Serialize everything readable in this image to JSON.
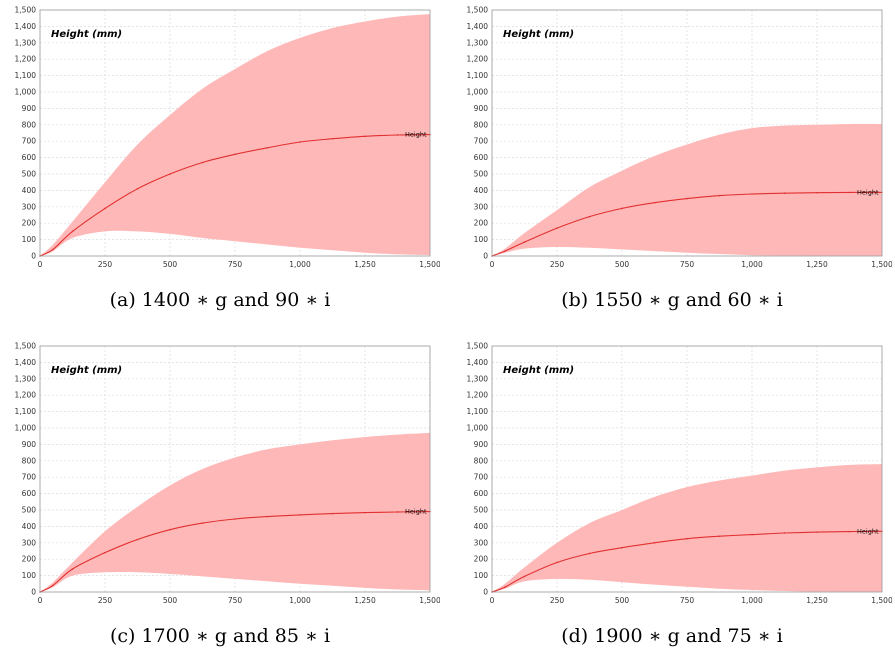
{
  "chart_data": [
    {
      "type": "area",
      "title": "Height (mm)",
      "caption": "(a) 1400 ∗ g and 90 ∗ i",
      "xlim": [
        0,
        1500
      ],
      "ylim": [
        0,
        1500
      ],
      "x_ticks": [
        "0",
        "250",
        "500",
        "750",
        "1,000",
        "1,250",
        "1,500"
      ],
      "y_ticks": [
        "0",
        "100",
        "200",
        "300",
        "400",
        "500",
        "600",
        "700",
        "800",
        "900",
        "1,000",
        "1,100",
        "1,200",
        "1,300",
        "1,400",
        "1,500"
      ],
      "grid": true,
      "line_label": "Height",
      "x": [
        0,
        50,
        125,
        250,
        375,
        500,
        625,
        750,
        875,
        1000,
        1125,
        1250,
        1375,
        1500
      ],
      "mean": [
        0,
        40,
        150,
        290,
        410,
        500,
        570,
        620,
        660,
        695,
        715,
        730,
        738,
        740
      ],
      "upper": [
        0,
        70,
        210,
        450,
        680,
        860,
        1020,
        1140,
        1250,
        1330,
        1390,
        1430,
        1460,
        1475
      ],
      "lower": [
        0,
        30,
        110,
        150,
        150,
        135,
        110,
        90,
        70,
        50,
        35,
        20,
        10,
        5
      ]
    },
    {
      "type": "area",
      "title": "Height (mm)",
      "caption": "(b) 1550 ∗ g and 60 ∗ i",
      "xlim": [
        0,
        1500
      ],
      "ylim": [
        0,
        1500
      ],
      "x_ticks": [
        "0",
        "250",
        "500",
        "750",
        "1,000",
        "1,250",
        "1,500"
      ],
      "y_ticks": [
        "0",
        "100",
        "200",
        "300",
        "400",
        "500",
        "600",
        "700",
        "800",
        "900",
        "1,000",
        "1,100",
        "1,200",
        "1,300",
        "1,400",
        "1,500"
      ],
      "grid": true,
      "line_label": "Height",
      "x": [
        0,
        50,
        125,
        250,
        375,
        500,
        625,
        750,
        875,
        1000,
        1125,
        1250,
        1375,
        1500
      ],
      "mean": [
        0,
        30,
        85,
        170,
        240,
        290,
        325,
        350,
        368,
        378,
        383,
        386,
        388,
        388
      ],
      "upper": [
        0,
        45,
        140,
        280,
        420,
        520,
        610,
        680,
        740,
        780,
        795,
        800,
        805,
        805
      ],
      "lower": [
        0,
        20,
        45,
        55,
        50,
        40,
        30,
        20,
        12,
        5,
        2,
        0,
        0,
        0
      ]
    },
    {
      "type": "area",
      "title": "Height (mm)",
      "caption": "(c) 1700 ∗ g and 85 ∗ i",
      "xlim": [
        0,
        1500
      ],
      "ylim": [
        0,
        1500
      ],
      "x_ticks": [
        "0",
        "250",
        "500",
        "750",
        "1,000",
        "1,250",
        "1,500"
      ],
      "y_ticks": [
        "0",
        "100",
        "200",
        "300",
        "400",
        "500",
        "600",
        "700",
        "800",
        "900",
        "1,000",
        "1,100",
        "1,200",
        "1,300",
        "1,400",
        "1,500"
      ],
      "grid": true,
      "line_label": "Height",
      "x": [
        0,
        50,
        125,
        250,
        375,
        500,
        625,
        750,
        875,
        1000,
        1125,
        1250,
        1375,
        1500
      ],
      "mean": [
        0,
        40,
        140,
        240,
        320,
        380,
        420,
        445,
        460,
        470,
        478,
        484,
        488,
        490
      ],
      "upper": [
        0,
        60,
        180,
        370,
        520,
        650,
        750,
        820,
        870,
        900,
        925,
        945,
        960,
        970
      ],
      "lower": [
        0,
        30,
        100,
        120,
        120,
        110,
        95,
        80,
        65,
        50,
        38,
        25,
        15,
        10
      ]
    },
    {
      "type": "area",
      "title": "Height (mm)",
      "caption": "(d) 1900 ∗ g and 75 ∗ i",
      "xlim": [
        0,
        1500
      ],
      "ylim": [
        0,
        1500
      ],
      "x_ticks": [
        "0",
        "250",
        "500",
        "750",
        "1,000",
        "1,250",
        "1,500"
      ],
      "y_ticks": [
        "0",
        "100",
        "200",
        "300",
        "400",
        "500",
        "600",
        "700",
        "800",
        "900",
        "1,000",
        "1,100",
        "1,200",
        "1,300",
        "1,400",
        "1,500"
      ],
      "grid": true,
      "line_label": "Height",
      "x": [
        0,
        50,
        125,
        250,
        375,
        500,
        625,
        750,
        875,
        1000,
        1125,
        1250,
        1375,
        1500
      ],
      "mean": [
        0,
        30,
        95,
        180,
        235,
        270,
        300,
        325,
        340,
        350,
        360,
        365,
        368,
        370
      ],
      "upper": [
        0,
        50,
        150,
        300,
        420,
        500,
        580,
        640,
        680,
        710,
        740,
        760,
        775,
        780
      ],
      "lower": [
        0,
        20,
        65,
        80,
        75,
        60,
        45,
        32,
        20,
        12,
        6,
        2,
        0,
        0
      ]
    }
  ],
  "colors": {
    "band": "#ffb8b8",
    "line": "#e03030",
    "grid": "#dcdcdc",
    "frame": "#9a9a9a"
  }
}
